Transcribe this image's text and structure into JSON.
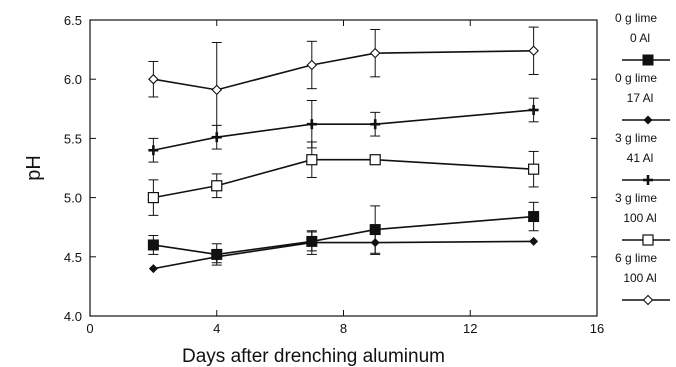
{
  "chart_data": {
    "type": "line",
    "title": "",
    "xlabel": "Days after drenching aluminum",
    "ylabel": "pH",
    "xlim": [
      0,
      16
    ],
    "ylim": [
      4.0,
      6.5
    ],
    "xticks": [
      0,
      4,
      8,
      12,
      16
    ],
    "yticks": [
      4.0,
      4.5,
      5.0,
      5.5,
      6.0,
      6.5
    ],
    "xtick_labels": [
      "0",
      "4",
      "8",
      "12",
      "16"
    ],
    "ytick_labels": [
      "4.0",
      "4.5",
      "5.0",
      "5.5",
      "6.0",
      "6.5"
    ],
    "grid": false,
    "legend_position": "right",
    "series": [
      {
        "name_lines": [
          "0 g lime",
          "0 Al"
        ],
        "marker": "filled-square",
        "x": [
          2,
          4,
          7,
          9,
          14
        ],
        "y": [
          4.6,
          4.52,
          4.63,
          4.73,
          4.84
        ],
        "err": [
          0.08,
          0.09,
          0.08,
          0.2,
          0.12
        ]
      },
      {
        "name_lines": [
          "0 g lime",
          "17 Al"
        ],
        "marker": "filled-diamond",
        "x": [
          2,
          4,
          7,
          9,
          14
        ],
        "y": [
          4.4,
          4.5,
          4.62,
          4.62,
          4.63
        ],
        "err": [
          0.0,
          0.05,
          0.1,
          0.1,
          0.0
        ]
      },
      {
        "name_lines": [
          "3 g lime",
          "41 Al"
        ],
        "marker": "cross",
        "x": [
          2,
          4,
          7,
          9,
          14
        ],
        "y": [
          5.4,
          5.51,
          5.62,
          5.62,
          5.74
        ],
        "err": [
          0.1,
          0.1,
          0.2,
          0.1,
          0.1
        ]
      },
      {
        "name_lines": [
          "3 g lime",
          "100 Al"
        ],
        "marker": "open-square",
        "x": [
          2,
          4,
          7,
          9,
          14
        ],
        "y": [
          5.0,
          5.1,
          5.32,
          5.32,
          5.24
        ],
        "err": [
          0.15,
          0.1,
          0.15,
          0.03,
          0.15
        ]
      },
      {
        "name_lines": [
          "6 g lime",
          "100 Al"
        ],
        "marker": "open-diamond",
        "x": [
          2,
          4,
          7,
          9,
          14
        ],
        "y": [
          6.0,
          5.91,
          6.12,
          6.22,
          6.24
        ],
        "err": [
          0.15,
          0.4,
          0.2,
          0.2,
          0.2
        ]
      }
    ]
  }
}
